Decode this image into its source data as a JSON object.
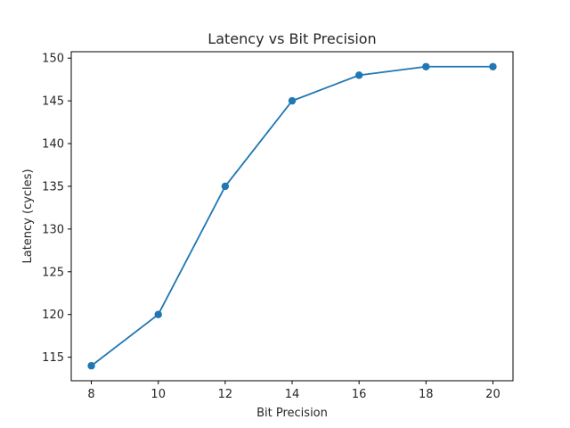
{
  "chart_data": {
    "type": "line",
    "title": "Latency vs Bit Precision",
    "xlabel": "Bit Precision",
    "ylabel": "Latency (cycles)",
    "x": [
      8,
      10,
      12,
      14,
      16,
      18,
      20
    ],
    "series": [
      {
        "values": [
          114,
          120,
          135,
          145,
          148,
          149,
          149
        ],
        "color": "#1f77b4",
        "marker": "circle"
      }
    ],
    "xticks": [
      8,
      10,
      12,
      14,
      16,
      18,
      20
    ],
    "yticks": [
      115,
      120,
      125,
      130,
      135,
      140,
      145,
      150
    ],
    "xlim": [
      7.4,
      20.6
    ],
    "ylim": [
      112.25,
      150.75
    ],
    "grid": false,
    "legend": "none"
  }
}
